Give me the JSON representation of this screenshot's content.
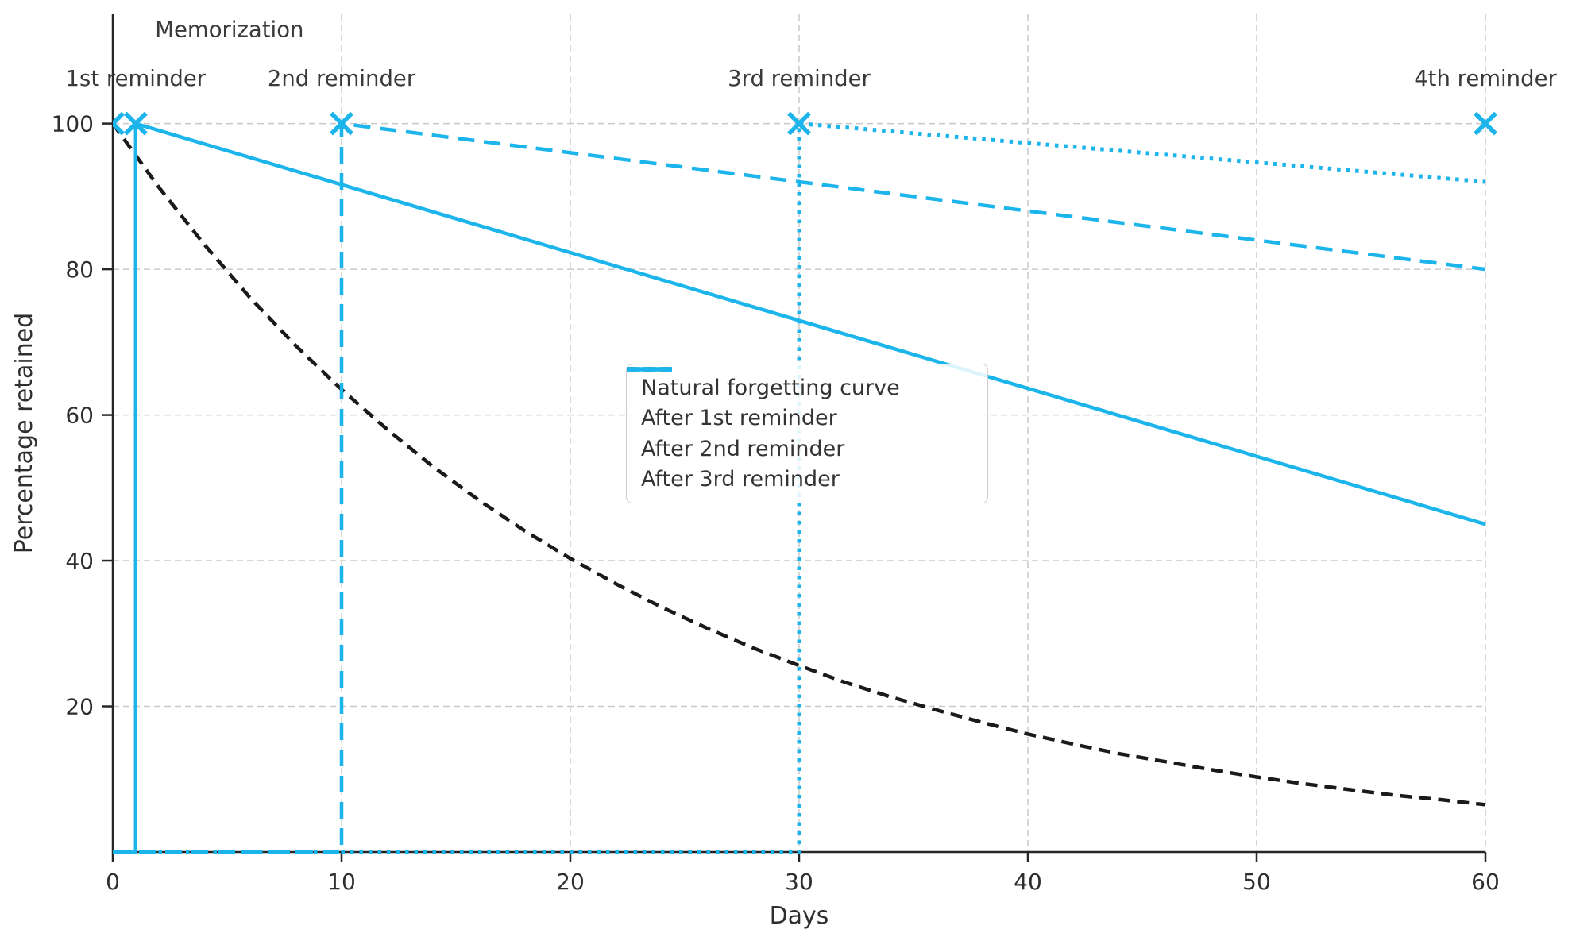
{
  "chart_data": {
    "type": "line",
    "title": "",
    "xlabel": "Days",
    "ylabel": "Percentage retained",
    "xlim": [
      0,
      60
    ],
    "ylim": [
      0,
      115
    ],
    "x_ticks": [
      0,
      10,
      20,
      30,
      40,
      50,
      60
    ],
    "y_ticks": [
      20,
      40,
      60,
      80,
      100
    ],
    "grid": true,
    "legend_position": "center",
    "colors": {
      "natural": "#1a1a1a",
      "reminder": "#1bb5ec",
      "grid": "#c9c9c9",
      "spine": "#262626",
      "text": "#333333"
    },
    "series": [
      {
        "name": "Natural forgetting curve",
        "style": "dashed",
        "color_key": "natural",
        "points": [
          [
            0,
            100
          ],
          [
            2,
            91.3
          ],
          [
            4,
            83.4
          ],
          [
            6,
            76.1
          ],
          [
            8,
            69.5
          ],
          [
            10,
            63.5
          ],
          [
            12,
            58.0
          ],
          [
            14,
            52.9
          ],
          [
            16,
            48.3
          ],
          [
            18,
            44.1
          ],
          [
            20,
            40.3
          ],
          [
            22,
            36.8
          ],
          [
            24,
            33.6
          ],
          [
            26,
            30.7
          ],
          [
            28,
            28.0
          ],
          [
            30,
            25.6
          ],
          [
            32,
            23.3
          ],
          [
            34,
            21.3
          ],
          [
            36,
            19.5
          ],
          [
            38,
            17.8
          ],
          [
            40,
            16.2
          ],
          [
            42,
            14.8
          ],
          [
            44,
            13.5
          ],
          [
            46,
            12.4
          ],
          [
            48,
            11.3
          ],
          [
            50,
            10.3
          ],
          [
            52,
            9.4
          ],
          [
            54,
            8.6
          ],
          [
            56,
            7.8
          ],
          [
            58,
            7.2
          ],
          [
            60,
            6.5
          ]
        ]
      },
      {
        "name": "After 1st reminder",
        "style": "solid",
        "color_key": "reminder",
        "points": [
          [
            0,
            0
          ],
          [
            1,
            0
          ],
          [
            1,
            100
          ],
          [
            60,
            45
          ]
        ]
      },
      {
        "name": "After 2nd reminder",
        "style": "dashed",
        "color_key": "reminder",
        "points": [
          [
            0,
            0
          ],
          [
            10,
            0
          ],
          [
            10,
            100
          ],
          [
            60,
            80
          ]
        ]
      },
      {
        "name": "After 3rd reminder",
        "style": "dotted",
        "color_key": "reminder",
        "points": [
          [
            0,
            0
          ],
          [
            30,
            0
          ],
          [
            30,
            100
          ],
          [
            60,
            92
          ]
        ]
      }
    ],
    "markers": {
      "style": "x",
      "color_key": "reminder",
      "points": [
        [
          0,
          100
        ],
        [
          1,
          100
        ],
        [
          10,
          100
        ],
        [
          30,
          100
        ],
        [
          60,
          100
        ]
      ]
    },
    "annotations": [
      {
        "text": "Memorization",
        "x": 5.1,
        "y": 113
      },
      {
        "text": "1st reminder",
        "x": 1,
        "y": 106.3
      },
      {
        "text": "2nd reminder",
        "x": 10,
        "y": 106.3
      },
      {
        "text": "3rd reminder",
        "x": 30,
        "y": 106.3
      },
      {
        "text": "4th reminder",
        "x": 60,
        "y": 106.3
      }
    ]
  }
}
